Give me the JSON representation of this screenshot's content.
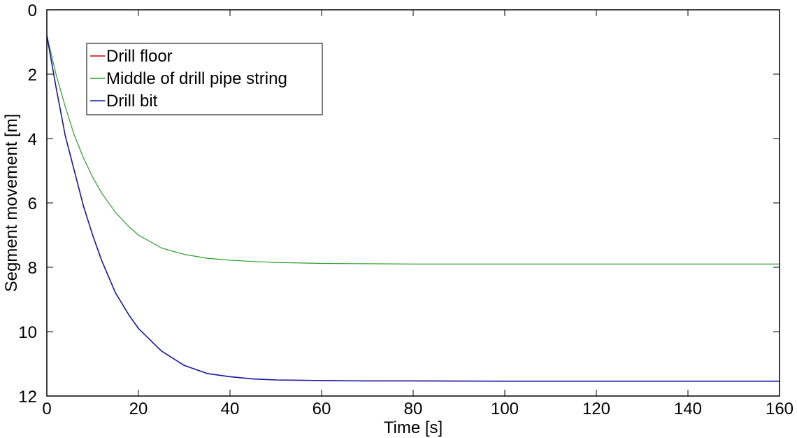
{
  "chart_data": {
    "type": "line",
    "title": "",
    "xlabel": "Time [s]",
    "ylabel": "Segment movement [m]",
    "xlim": [
      0,
      160
    ],
    "ylim": [
      0,
      12
    ],
    "y_reversed": true,
    "grid": false,
    "legend_position": "top-left",
    "xticks": [
      0,
      20,
      40,
      60,
      80,
      100,
      120,
      140,
      160
    ],
    "yticks": [
      0,
      2,
      4,
      6,
      8,
      10,
      12
    ],
    "series": [
      {
        "name": "Drill floor",
        "color": "#cc0000",
        "x": [
          0,
          2,
          4,
          6,
          8,
          10,
          12,
          15,
          18,
          20,
          25,
          30,
          35,
          40,
          45,
          50,
          60,
          70,
          80,
          100,
          120,
          140,
          160
        ],
        "y": [
          0.8,
          2.4,
          3.9,
          5.0,
          6.1,
          7.0,
          7.8,
          8.8,
          9.5,
          9.9,
          10.6,
          11.05,
          11.3,
          11.4,
          11.47,
          11.5,
          11.52,
          11.53,
          11.53,
          11.54,
          11.54,
          11.54,
          11.54
        ]
      },
      {
        "name": "Middle of drill pipe string",
        "color": "#2e9e2e",
        "x": [
          0,
          2,
          4,
          6,
          8,
          10,
          12,
          15,
          18,
          20,
          25,
          30,
          35,
          40,
          45,
          50,
          60,
          70,
          80,
          100,
          120,
          140,
          160
        ],
        "y": [
          0.8,
          2.0,
          3.0,
          3.9,
          4.6,
          5.2,
          5.7,
          6.3,
          6.75,
          7.0,
          7.4,
          7.6,
          7.72,
          7.78,
          7.82,
          7.85,
          7.88,
          7.89,
          7.9,
          7.9,
          7.9,
          7.9,
          7.9
        ]
      },
      {
        "name": "Drill bit",
        "color": "#1a1aa6",
        "x": [
          0,
          2,
          4,
          6,
          8,
          10,
          12,
          15,
          18,
          20,
          25,
          30,
          35,
          40,
          45,
          50,
          60,
          70,
          80,
          100,
          120,
          140,
          160
        ],
        "y": [
          0.8,
          2.4,
          3.9,
          5.0,
          6.1,
          7.0,
          7.8,
          8.8,
          9.5,
          9.9,
          10.6,
          11.05,
          11.3,
          11.4,
          11.47,
          11.5,
          11.52,
          11.53,
          11.53,
          11.54,
          11.54,
          11.54,
          11.54
        ]
      }
    ]
  }
}
